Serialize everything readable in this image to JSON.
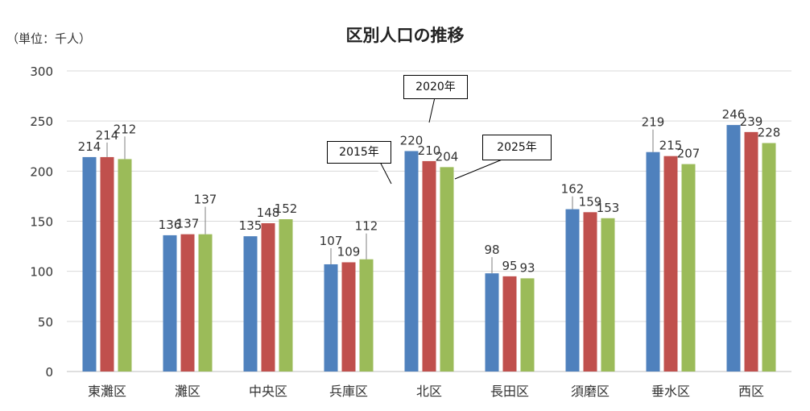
{
  "chart_data": {
    "type": "bar",
    "title": "区別人口の推移",
    "unit_label": "（単位：千人）",
    "categories": [
      "東灘区",
      "灘区",
      "中央区",
      "兵庫区",
      "北区",
      "長田区",
      "須磨区",
      "垂水区",
      "西区"
    ],
    "series": [
      {
        "name": "2015年",
        "color": "#4F81BD",
        "values": [
          214,
          136,
          135,
          107,
          220,
          98,
          162,
          219,
          246
        ]
      },
      {
        "name": "2020年",
        "color": "#C0504D",
        "values": [
          214,
          137,
          148,
          109,
          210,
          95,
          159,
          215,
          239
        ]
      },
      {
        "name": "2025年",
        "color": "#9BBB59",
        "values": [
          212,
          137,
          152,
          112,
          204,
          93,
          153,
          207,
          228
        ]
      }
    ],
    "ylim": [
      0,
      300
    ],
    "yticks": [
      0,
      50,
      100,
      150,
      200,
      250,
      300
    ],
    "grid": true,
    "legend": "callouts on 北区 bars"
  }
}
